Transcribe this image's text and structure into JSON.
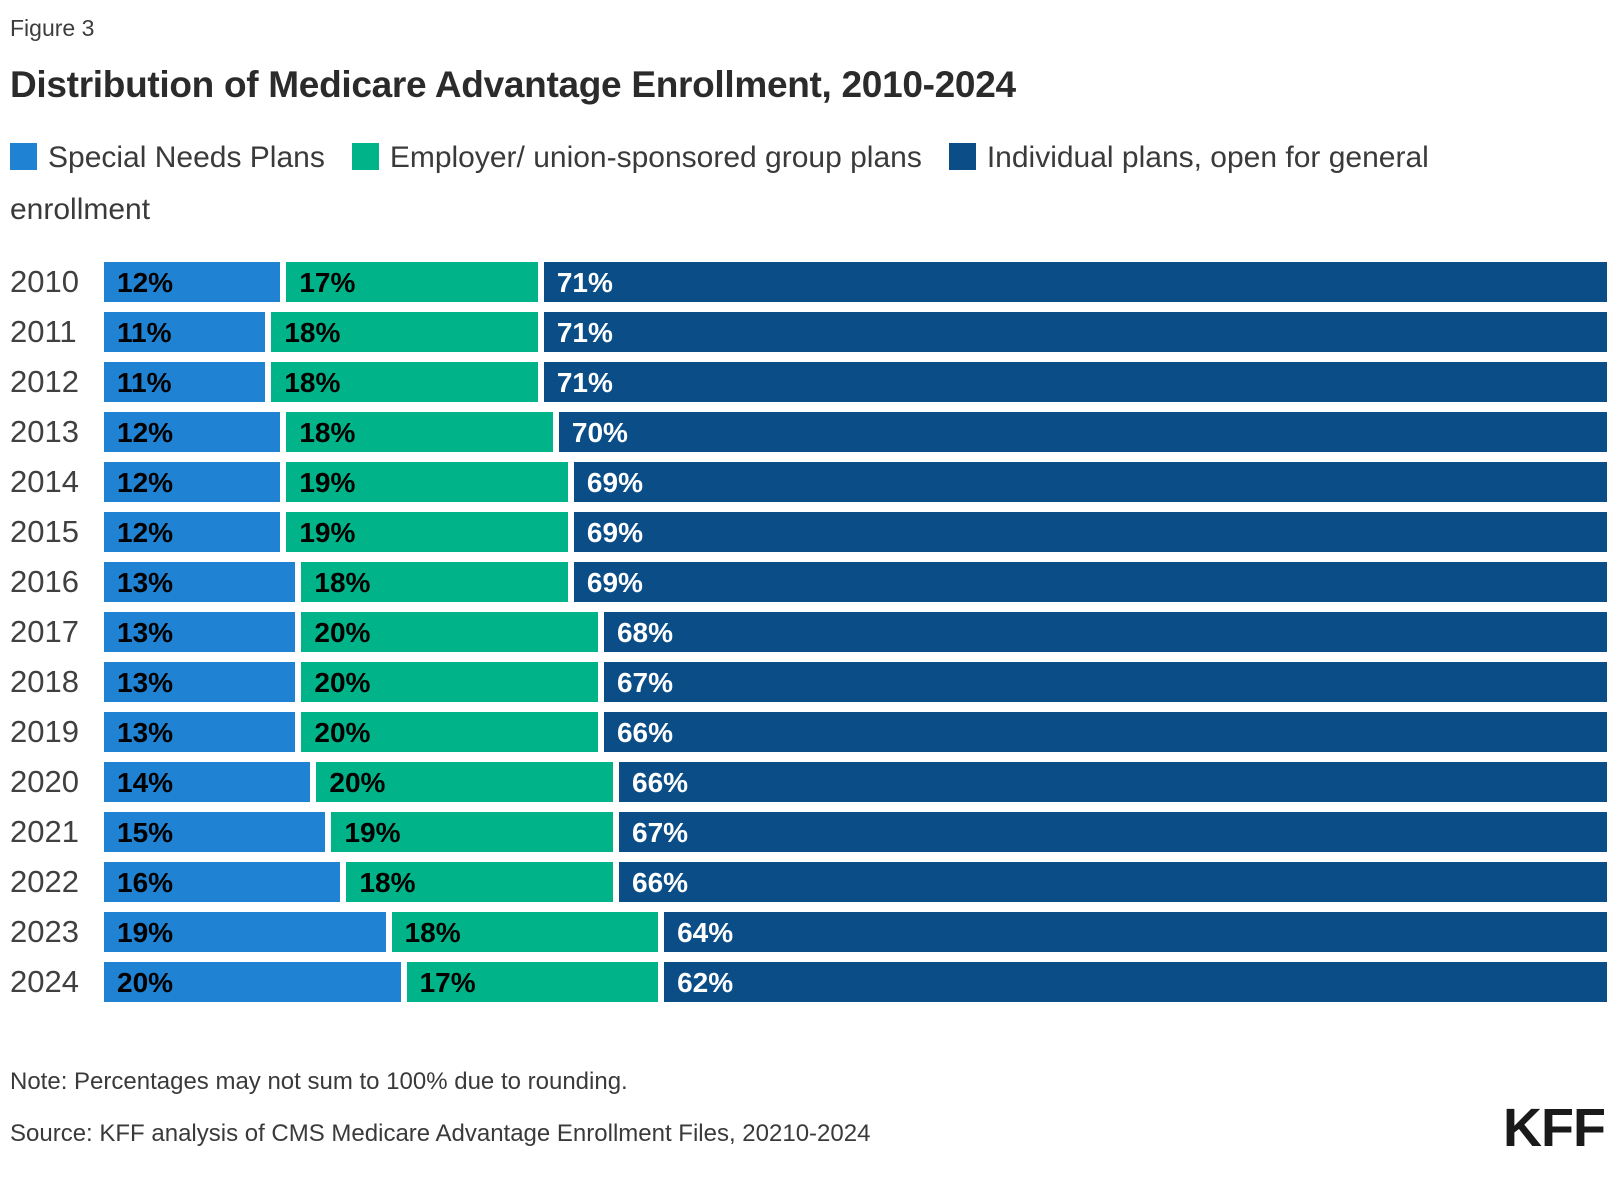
{
  "figure_label": "Figure 3",
  "title": "Distribution of Medicare Advantage Enrollment, 2010-2024",
  "note": "Note: Percentages may not sum to 100% due to rounding.",
  "source": "Source: KFF analysis of CMS Medicare Advantage Enrollment Files, 20210-2024",
  "logo": "KFF",
  "chart_data": {
    "type": "bar",
    "orientation": "horizontal-stacked",
    "title": "Distribution of Medicare Advantage Enrollment, 2010-2024",
    "xlim": [
      0,
      100
    ],
    "grid": false,
    "legend_position": "top",
    "value_suffix": "%",
    "categories": [
      "2010",
      "2011",
      "2012",
      "2013",
      "2014",
      "2015",
      "2016",
      "2017",
      "2018",
      "2019",
      "2020",
      "2021",
      "2022",
      "2023",
      "2024"
    ],
    "series": [
      {
        "name": "Special Needs Plans",
        "color": "#1F82D2",
        "label_color": "#000000",
        "values": [
          12,
          11,
          11,
          12,
          12,
          12,
          13,
          13,
          13,
          13,
          14,
          15,
          16,
          19,
          20
        ]
      },
      {
        "name": "Employer/ union-sponsored group plans",
        "color": "#00B388",
        "label_color": "#000000",
        "values": [
          17,
          18,
          18,
          18,
          19,
          19,
          18,
          20,
          20,
          20,
          20,
          19,
          18,
          18,
          17
        ]
      },
      {
        "name": "Individual plans, open for general enrollment",
        "color": "#0B4D87",
        "label_color": "#ffffff",
        "values": [
          71,
          71,
          71,
          70,
          69,
          69,
          69,
          68,
          67,
          66,
          66,
          67,
          66,
          64,
          62
        ]
      }
    ]
  }
}
